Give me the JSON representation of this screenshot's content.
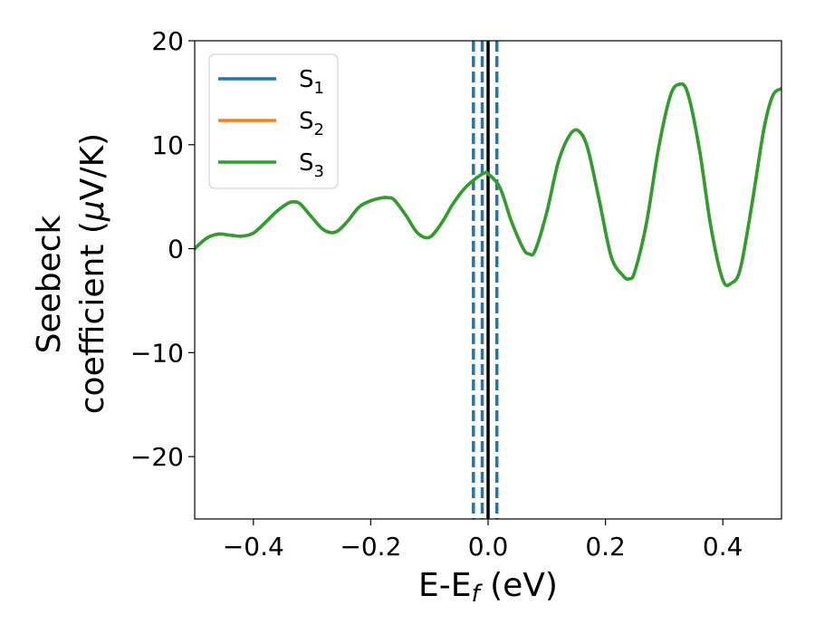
{
  "chart_data": {
    "type": "line",
    "xlabel": "E-E",
    "xlabel_sub": "f",
    "xlabel_unit": " (eV)",
    "ylabel_line1": "Seebeck",
    "ylabel_line2_pre": "coefficient  (",
    "ylabel_mu": "μ",
    "ylabel_line2_post": "V/K)",
    "xlim": [
      -0.5,
      0.5
    ],
    "ylim": [
      -26,
      20
    ],
    "xticks": [
      -0.4,
      -0.2,
      0.0,
      0.2,
      0.4
    ],
    "xtick_labels": [
      "−0.4",
      "−0.2",
      "0.0",
      "0.2",
      "0.4"
    ],
    "yticks": [
      -20,
      -10,
      0,
      10,
      20
    ],
    "ytick_labels": [
      "−20",
      "−10",
      "0",
      "10",
      "20"
    ],
    "grid": false,
    "legend_position": "top-left",
    "series": [
      {
        "name": "S",
        "sub": "1",
        "color": "#1f77b4"
      },
      {
        "name": "S",
        "sub": "2",
        "color": "#ff7f0e"
      },
      {
        "name": "S",
        "sub": "3",
        "color": "#2ca02c"
      }
    ],
    "x": [
      -0.5,
      -0.48,
      -0.46,
      -0.44,
      -0.42,
      -0.4,
      -0.38,
      -0.36,
      -0.34,
      -0.33,
      -0.32,
      -0.3,
      -0.28,
      -0.26,
      -0.24,
      -0.22,
      -0.2,
      -0.18,
      -0.17,
      -0.16,
      -0.14,
      -0.12,
      -0.1,
      -0.08,
      -0.06,
      -0.04,
      -0.02,
      -0.005,
      0.0,
      0.02,
      0.04,
      0.06,
      0.07,
      0.08,
      0.1,
      0.12,
      0.14,
      0.155,
      0.17,
      0.19,
      0.21,
      0.23,
      0.24,
      0.25,
      0.27,
      0.29,
      0.31,
      0.325,
      0.34,
      0.36,
      0.38,
      0.4,
      0.415,
      0.43,
      0.45,
      0.47,
      0.485,
      0.5
    ],
    "values": [
      0.0,
      1.0,
      1.4,
      1.3,
      1.2,
      1.5,
      2.5,
      3.6,
      4.4,
      4.5,
      4.3,
      3.0,
      1.8,
      1.6,
      2.6,
      4.0,
      4.6,
      4.9,
      4.9,
      4.7,
      3.2,
      1.5,
      1.1,
      2.4,
      4.3,
      5.8,
      6.8,
      7.3,
      7.2,
      5.9,
      2.6,
      0.0,
      -0.5,
      -0.2,
      3.5,
      8.4,
      11.0,
      11.3,
      9.6,
      4.5,
      -0.8,
      -2.6,
      -2.9,
      -2.2,
      2.5,
      9.5,
      14.6,
      15.8,
      15.0,
      9.6,
      2.0,
      -3.0,
      -3.3,
      -1.9,
      4.4,
      11.5,
      14.7,
      15.4
    ],
    "vlines_dashed": [
      -0.025,
      -0.01,
      0.015
    ],
    "vlines_dashed_color": "#1f77b4",
    "vline_solid": 0.0,
    "vline_solid_color": "#000000"
  }
}
